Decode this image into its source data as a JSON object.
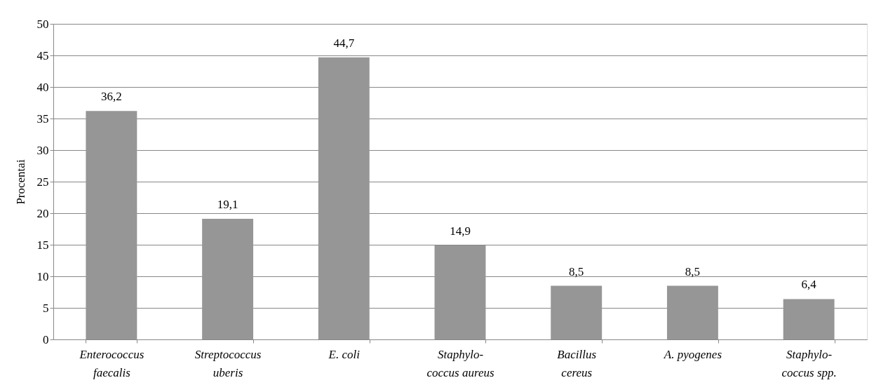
{
  "chart_data": {
    "type": "bar",
    "ylabel": "Procentai",
    "categories": [
      "Enterococcus\nfaecalis",
      "Streptococcus\nuberis",
      "E. coli",
      "Staphylo-\ncoccus aureus",
      "Bacillus\ncereus",
      "A. pyogenes",
      "Staphylo-\ncoccus spp."
    ],
    "values": [
      36.2,
      19.1,
      44.7,
      14.9,
      8.5,
      8.5,
      6.4
    ],
    "value_labels": [
      "36,2",
      "19,1",
      "44,7",
      "14,9",
      "8,5",
      "8,5",
      "6,4"
    ],
    "color": "#969696",
    "ylim": [
      0,
      50
    ],
    "yticks": [
      0,
      5,
      10,
      15,
      20,
      25,
      30,
      35,
      40,
      45,
      50
    ],
    "grid": "y"
  }
}
